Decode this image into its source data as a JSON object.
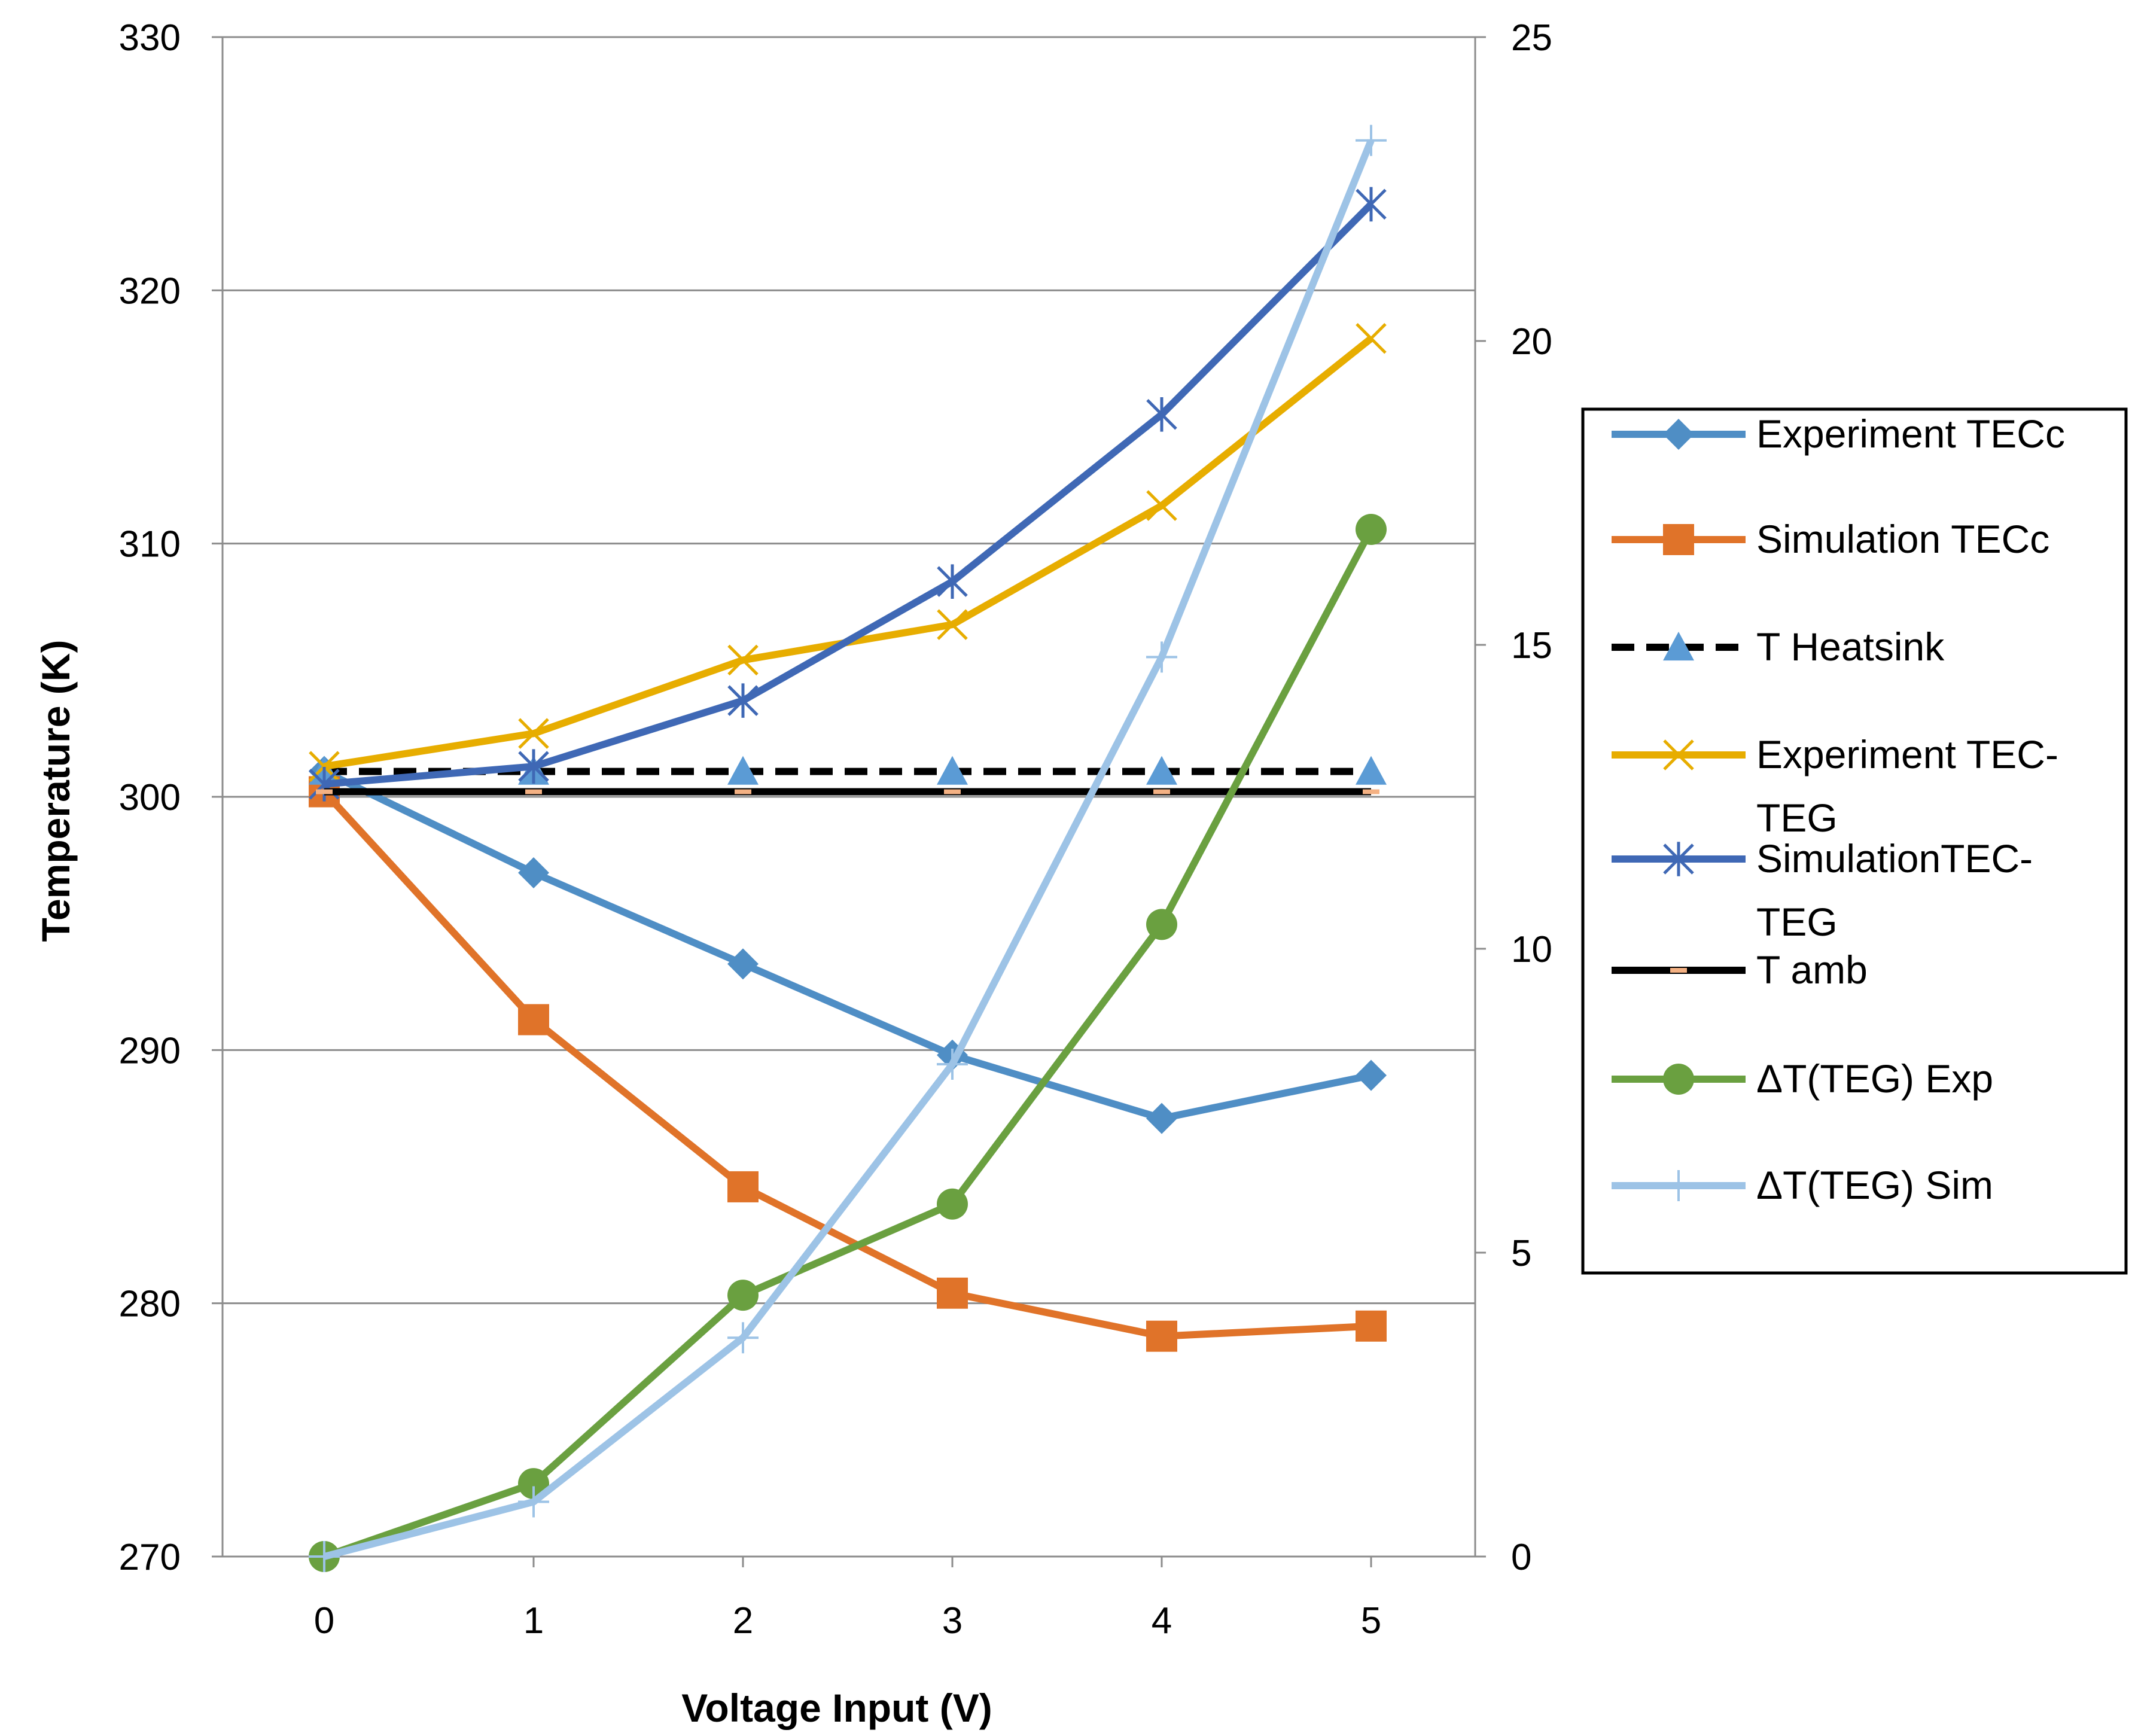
{
  "chart_data": {
    "type": "line",
    "title": "",
    "xlabel": "Voltage Input (V)",
    "ylabel": "Temperature (K)",
    "y2label": "",
    "x": [
      0,
      1,
      2,
      3,
      4,
      5
    ],
    "x_tick_labels": [
      "0",
      "1",
      "2",
      "3",
      "4",
      "5"
    ],
    "ylim": [
      270,
      330
    ],
    "y_ticks": [
      270,
      280,
      290,
      300,
      310,
      320,
      330
    ],
    "y_tick_labels": [
      "270",
      "280",
      "290",
      "300",
      "310",
      "320",
      "330"
    ],
    "y2lim": [
      0,
      25
    ],
    "y2_ticks": [
      0,
      5,
      10,
      15,
      20,
      25
    ],
    "y2_tick_labels": [
      "0",
      "5",
      "10",
      "15",
      "20",
      "25"
    ],
    "grid": "horizontal",
    "legend_position": "right",
    "series": [
      {
        "name": "Experiment TECc",
        "axis": "left",
        "values": [
          301.0,
          297.0,
          293.4,
          289.8,
          287.3,
          289.0
        ],
        "color": "#4f8ec5",
        "marker": "diamond",
        "dash": "solid"
      },
      {
        "name": "Simulation TECc",
        "axis": "left",
        "values": [
          300.2,
          291.2,
          284.6,
          280.4,
          278.7,
          279.1
        ],
        "color": "#e07329",
        "marker": "square",
        "dash": "solid"
      },
      {
        "name": "T Heatsink",
        "axis": "left",
        "values": [
          301.0,
          301.0,
          301.0,
          301.0,
          301.0,
          301.0
        ],
        "color": "#000000",
        "marker_color": "#5b9bd5",
        "marker": "triangle",
        "dash": "dashed"
      },
      {
        "name": "Experiment TEC-TEG",
        "legend_lines": [
          "Experiment TEC-",
          "TEG"
        ],
        "axis": "left",
        "values": [
          301.2,
          302.5,
          305.4,
          306.8,
          311.5,
          318.1
        ],
        "color": "#e7ad00",
        "marker": "x",
        "dash": "solid"
      },
      {
        "name": "SimulationTEC-TEG",
        "legend_lines": [
          "SimulationTEC-",
          "TEG"
        ],
        "axis": "left",
        "values": [
          300.5,
          301.2,
          303.8,
          308.5,
          315.1,
          323.4
        ],
        "color": "#3f68b5",
        "marker": "star",
        "dash": "solid"
      },
      {
        "name": "T amb",
        "axis": "left",
        "values": [
          300.2,
          300.2,
          300.2,
          300.2,
          300.2,
          300.2
        ],
        "color": "#000000",
        "marker_color": "#f4b183",
        "marker": "dash",
        "dash": "solid"
      },
      {
        "name": "ΔT(TEG) Exp",
        "axis": "right",
        "values": [
          0.0,
          1.2,
          4.3,
          5.8,
          10.4,
          16.9
        ],
        "color": "#6aa040",
        "marker": "circle",
        "dash": "solid"
      },
      {
        "name": "ΔT(TEG) Sim",
        "axis": "right",
        "values": [
          0.0,
          0.9,
          3.6,
          8.1,
          14.8,
          23.3
        ],
        "color": "#9dc3e6",
        "marker": "plus",
        "dash": "solid"
      }
    ]
  }
}
